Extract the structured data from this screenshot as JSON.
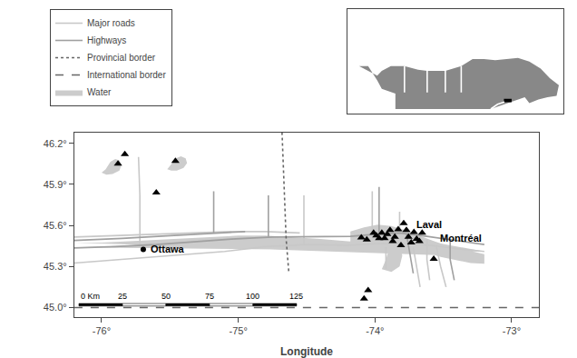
{
  "chart_data": [
    {
      "type": "map",
      "xlabel": "Longitude",
      "xlim": [
        -76.2,
        -72.8
      ],
      "ylim": [
        44.93,
        46.28
      ],
      "xticks": [
        {
          "value": -76,
          "label": "-76°"
        },
        {
          "value": -75,
          "label": "-75°"
        },
        {
          "value": -74,
          "label": "-74°"
        },
        {
          "value": -73,
          "label": "-73°"
        }
      ],
      "yticks": [
        {
          "value": 45.0,
          "label": "45.0°"
        },
        {
          "value": 45.3,
          "label": "45.3°"
        },
        {
          "value": 45.6,
          "label": "45.6°"
        },
        {
          "value": 45.9,
          "label": "45.9°"
        },
        {
          "value": 46.2,
          "label": "46.2°"
        }
      ],
      "grid": false,
      "legend": "upper left",
      "series": [
        {
          "name": "Major roads",
          "type": "line",
          "line_style": "solid",
          "color": "#c8c8c8",
          "x": [
            -76.2,
            -76.0,
            -75.7,
            -75.4,
            -75.1,
            -74.8,
            -74.5,
            -74.2,
            -74.0,
            -73.8,
            -73.6,
            -73.4,
            -73.2,
            null,
            -76.2,
            -75.9,
            -75.6,
            -75.3,
            -75.05,
            -74.8,
            -74.55,
            null,
            -75.72,
            -75.72,
            -75.72,
            -75.73,
            null,
            -74.52,
            -74.52,
            -74.52,
            null,
            -73.92,
            -73.92,
            null,
            -74.02,
            -74.02,
            -74.02,
            null,
            -73.72,
            -73.7,
            -73.67,
            null,
            -73.55,
            -73.52,
            -73.48,
            null,
            -73.82,
            -73.82,
            null,
            -73.62,
            -73.62,
            -73.6
          ],
          "values": [
            45.325,
            45.34,
            45.365,
            45.385,
            45.41,
            45.445,
            45.46,
            45.455,
            45.465,
            45.47,
            45.455,
            45.43,
            45.41,
            null,
            45.515,
            45.525,
            45.535,
            45.545,
            45.555,
            45.555,
            45.545,
            null,
            45.46,
            45.62,
            45.82,
            46.1,
            null,
            45.46,
            45.62,
            45.82,
            null,
            45.28,
            45.44,
            null,
            45.535,
            45.68,
            45.85,
            null,
            45.44,
            45.32,
            45.15,
            null,
            45.44,
            45.3,
            45.15,
            null,
            45.555,
            45.7,
            null,
            45.5,
            45.35,
            45.2
          ]
        },
        {
          "name": "Highways",
          "type": "line",
          "line_style": "solid",
          "color": "#a0a0a0",
          "x": [
            -76.2,
            -75.9,
            -75.6,
            -75.3,
            -75.05,
            -74.75,
            -74.45,
            -74.18,
            -74.0,
            -73.82,
            -73.62,
            -73.42,
            -73.2,
            null,
            -76.2,
            -75.85,
            -75.5,
            -75.15,
            -74.95,
            null,
            -75.18,
            -75.18,
            -75.18,
            null,
            -74.78,
            -74.78,
            -74.78,
            null,
            -73.97,
            -73.97,
            -73.97,
            null,
            -73.77,
            -73.75,
            -73.72,
            null,
            -73.45,
            -73.45,
            -73.42
          ],
          "values": [
            45.435,
            45.445,
            45.46,
            45.48,
            45.5,
            45.515,
            45.515,
            45.52,
            45.535,
            45.545,
            45.52,
            45.49,
            45.46,
            null,
            45.49,
            45.505,
            45.525,
            45.545,
            45.555,
            null,
            45.54,
            45.68,
            45.85,
            null,
            45.515,
            45.65,
            45.82,
            null,
            45.54,
            45.7,
            45.88,
            null,
            45.54,
            45.42,
            45.25,
            null,
            45.49,
            45.35,
            45.2
          ]
        },
        {
          "name": "Provincial border",
          "type": "line",
          "line_style": "dotted",
          "color": "#666666",
          "x": [
            -74.68,
            -74.67,
            -74.66,
            -74.65,
            -74.63
          ],
          "values": [
            46.28,
            46.0,
            45.75,
            45.5,
            45.25
          ]
        },
        {
          "name": "International border",
          "type": "line",
          "line_style": "dashed",
          "color": "#666666",
          "x": [
            -76.2,
            -72.8
          ],
          "values": [
            45.0,
            45.0
          ]
        },
        {
          "name": "Water",
          "type": "area",
          "color": "#cccccc",
          "x": [
            -76.2,
            -76.0,
            -75.8,
            -75.6,
            -75.4,
            -75.2,
            -75.0,
            -74.8,
            -74.6,
            -74.4,
            -74.2,
            -74.05,
            -73.95,
            -73.85,
            -73.75,
            -73.65,
            -73.55,
            -73.45,
            -73.35,
            -73.2,
            -76.2,
            -76.0,
            -75.8,
            -75.6,
            -75.4,
            -75.2,
            -75.0,
            -74.8,
            -74.6,
            -74.4,
            -74.2,
            -74.05,
            -73.95,
            -73.85,
            -73.75,
            -73.65,
            -73.55,
            -73.45,
            -73.35,
            -73.2,
            null,
            -76.0,
            -75.97,
            -75.935,
            -75.9,
            -75.87,
            -75.855,
            -75.87,
            -75.92,
            -75.965,
            null,
            -75.52,
            -75.485,
            -75.455,
            -75.42,
            -75.385,
            -75.375,
            -75.4,
            -75.45,
            -75.49,
            null,
            -74.18,
            -74.08,
            -73.98,
            -73.88,
            -73.78,
            -73.68,
            -73.58,
            -73.48,
            -73.38,
            -73.28,
            -73.2,
            -73.2,
            -73.3,
            -73.4,
            -73.52,
            -73.62,
            -73.72,
            -73.82,
            -73.92,
            -74.02,
            -74.12,
            -74.18,
            null,
            -73.95,
            -73.92,
            -73.9,
            -73.86,
            -73.82,
            -73.8,
            -73.82,
            -73.88
          ],
          "values": [
            45.475,
            45.475,
            45.485,
            45.495,
            45.505,
            45.515,
            45.525,
            45.525,
            45.515,
            45.5,
            45.485,
            45.475,
            45.515,
            45.545,
            45.535,
            45.505,
            45.475,
            45.455,
            45.435,
            45.41,
            45.44,
            45.445,
            45.455,
            45.465,
            45.475,
            45.485,
            45.495,
            45.495,
            45.475,
            45.46,
            45.445,
            45.435,
            45.475,
            45.515,
            45.495,
            45.465,
            45.435,
            45.41,
            45.385,
            45.37,
            null,
            45.985,
            46.01,
            46.065,
            46.085,
            46.075,
            46.04,
            46.0,
            45.975,
            45.97,
            null,
            46.01,
            46.055,
            46.09,
            46.105,
            46.09,
            46.055,
            46.02,
            46.0,
            46.0,
            null,
            45.555,
            45.585,
            45.605,
            45.595,
            45.565,
            45.525,
            45.49,
            45.455,
            45.43,
            45.405,
            45.39,
            45.32,
            45.325,
            45.345,
            45.37,
            45.4,
            45.435,
            45.465,
            45.475,
            45.455,
            45.435,
            45.46,
            null,
            45.28,
            45.35,
            45.42,
            45.445,
            45.435,
            45.38,
            45.3,
            45.26
          ]
        },
        {
          "type": "scatter",
          "marker": "triangle-up",
          "color": "black",
          "x": [
            -75.83,
            -75.88,
            -75.46,
            -75.6,
            -74.1,
            -74.06,
            -74.01,
            -73.99,
            -73.97,
            -73.95,
            -73.93,
            -73.91,
            -73.89,
            -73.87,
            -73.855,
            -73.83,
            -73.81,
            -73.79,
            -73.77,
            -73.755,
            -73.735,
            -73.715,
            -73.695,
            -73.675,
            -73.655,
            -74.05,
            -74.08,
            -73.57
          ],
          "values": [
            46.12,
            46.05,
            46.07,
            45.84,
            45.51,
            45.495,
            45.545,
            45.525,
            45.505,
            45.545,
            45.505,
            45.535,
            45.565,
            45.485,
            45.515,
            45.57,
            45.455,
            45.615,
            45.565,
            45.515,
            45.475,
            45.55,
            45.5,
            45.485,
            45.545,
            45.125,
            45.065,
            45.355
          ]
        },
        {
          "type": "scatter",
          "marker": "circle",
          "color": "black",
          "x": [
            -75.695
          ],
          "values": [
            45.425
          ]
        }
      ],
      "annotations": [
        {
          "text": "Ottawa",
          "x": -75.695,
          "y": 45.425
        },
        {
          "text": "Laval",
          "x": -73.75,
          "y": 45.61
        },
        {
          "text": "Montréal",
          "x": -73.575,
          "y": 45.505
        }
      ],
      "scale_bar": {
        "km": [
          0,
          25,
          50,
          75,
          100,
          125
        ],
        "labels": [
          "0 Km",
          "25",
          "50",
          "75",
          "100",
          "125"
        ],
        "colors": [
          "black",
          "white",
          "black",
          "white",
          "black"
        ],
        "km_per_deg_lon": 78.5
      }
    },
    {
      "type": "map",
      "xlim": [
        -145,
        -50
      ],
      "ylim": [
        40,
        84
      ],
      "tick_labels": false,
      "grid": false,
      "series": [
        {
          "type": "area",
          "color": "#888888",
          "x": [
            -140,
            -136,
            -132,
            -130,
            -124,
            -124,
            -95,
            -82,
            -76,
            -73,
            -70,
            -67,
            -65,
            -61,
            -57,
            -53,
            -52,
            -56,
            -60,
            -65,
            -70,
            -75,
            -80,
            -85,
            -90,
            -95,
            -102,
            -110,
            -114,
            -120,
            -126,
            -130,
            -132,
            -136,
            -140
          ],
          "values": [
            60,
            60,
            54,
            50.5,
            48.5,
            42,
            42,
            42,
            44,
            45,
            46,
            47,
            44.5,
            46,
            47,
            47.5,
            52,
            55,
            59,
            62,
            63.5,
            63,
            62.5,
            63,
            63,
            60,
            58,
            58,
            58.5,
            60,
            60,
            58,
            56,
            58,
            60
          ]
        },
        {
          "type": "line",
          "line_style": "solid",
          "color": "white",
          "x": [
            -95,
            -95,
            null,
            -102,
            -102,
            null,
            -110,
            -110,
            null,
            -120,
            -120,
            null,
            -76,
            -79,
            -82
          ],
          "values": [
            49,
            60,
            null,
            49,
            60,
            null,
            49,
            60,
            null,
            49,
            60,
            null,
            45,
            44,
            42
          ]
        },
        {
          "type": "area",
          "color": "black",
          "x": [
            -76.2,
            -72.8,
            -72.8,
            -76.2
          ],
          "values": [
            44.9,
            44.9,
            46.3,
            46.3
          ]
        }
      ]
    }
  ]
}
